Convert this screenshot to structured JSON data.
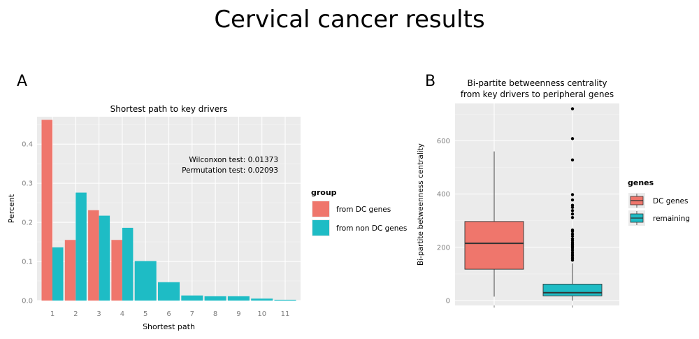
{
  "page": {
    "title": "Cervical cancer results",
    "panel_a_letter": "A",
    "panel_b_letter": "B"
  },
  "colors": {
    "dc": "#EF766C",
    "non_dc": "#1EBCC5",
    "panel_bg": "#EBEBEB",
    "grid": "#FFFFFF",
    "tick": "#7F7F7F"
  },
  "chart_data": [
    {
      "type": "bar",
      "title": "Shortest path to key drivers",
      "xlabel": "Shortest path",
      "ylabel": "Percent",
      "categories": [
        "1",
        "2",
        "3",
        "4",
        "5",
        "6",
        "7",
        "8",
        "9",
        "10",
        "11"
      ],
      "ylim": [
        0,
        0.47
      ],
      "yticks": [
        "0.0",
        "0.1",
        "0.2",
        "0.3",
        "0.4"
      ],
      "series": [
        {
          "name": "from DC genes",
          "values": [
            0.462,
            0.155,
            0.231,
            0.155,
            null,
            null,
            null,
            null,
            null,
            null,
            null
          ]
        },
        {
          "name": "from non DC genes",
          "values": [
            0.136,
            0.276,
            0.217,
            0.186,
            0.101,
            0.047,
            0.013,
            0.011,
            0.011,
            0.005,
            0.002
          ]
        }
      ],
      "legend_title": "group",
      "legend_position": "right",
      "annotations": [
        "Wilconxon test: 0.01373",
        "Permutation test: 0.02093"
      ],
      "grid": true
    },
    {
      "type": "boxplot",
      "title_lines": [
        "Bi-partite betweenness centrality",
        "from key drivers to peripheral genes"
      ],
      "xlabel": "",
      "ylabel": "Bi-partite betweenness centrality",
      "ylim": [
        -18,
        740
      ],
      "yticks": [
        "0",
        "200",
        "400",
        "600"
      ],
      "legend_title": "genes",
      "legend_position": "right",
      "grid": true,
      "boxes": [
        {
          "name": "DC genes",
          "min": 15,
          "q1": 118,
          "median": 215,
          "q3": 297,
          "max": 560,
          "outliers": []
        },
        {
          "name": "remaining",
          "min": 0,
          "q1": 18,
          "median": 30,
          "q3": 62,
          "max": 140,
          "outliers": [
            720,
            608,
            528,
            398,
            378,
            358,
            350,
            338,
            325,
            312,
            265,
            260,
            250,
            242,
            232,
            225,
            218,
            212,
            205,
            198,
            190,
            182,
            175,
            168,
            160,
            152
          ]
        }
      ]
    }
  ]
}
